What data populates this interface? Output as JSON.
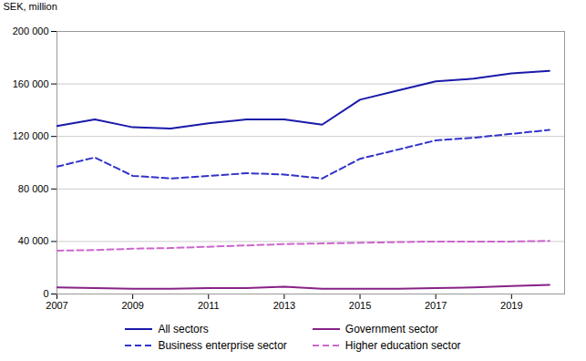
{
  "chart_data": {
    "type": "line",
    "ylabel": "SEK, million",
    "x": [
      2007,
      2008,
      2009,
      2010,
      2011,
      2012,
      2013,
      2014,
      2015,
      2016,
      2017,
      2018,
      2019,
      2020
    ],
    "series": [
      {
        "name": "All sectors",
        "color": "#1a1aaa",
        "line_style": "solid",
        "values": [
          128000,
          133000,
          127000,
          126000,
          130000,
          133000,
          133000,
          129000,
          148000,
          155000,
          162000,
          164000,
          168000,
          170000
        ]
      },
      {
        "name": "Business enterprise sector",
        "color": "#3333cc",
        "line_style": "dashed",
        "values": [
          97000,
          104000,
          90000,
          88000,
          90000,
          92000,
          91000,
          88000,
          103000,
          110000,
          117000,
          119000,
          122000,
          125000
        ]
      },
      {
        "name": "Government sector",
        "color": "#882288",
        "line_style": "solid",
        "values": [
          5000,
          4500,
          4000,
          4000,
          4500,
          4500,
          5500,
          4000,
          4000,
          4000,
          4500,
          5000,
          6000,
          7000
        ]
      },
      {
        "name": "Higher education sector",
        "color": "#cc66cc",
        "line_style": "dashed",
        "values": [
          33000,
          33500,
          34500,
          35000,
          36000,
          37000,
          38000,
          38500,
          39000,
          39500,
          40000,
          40000,
          40000,
          40500
        ]
      }
    ],
    "xlim": [
      2007,
      2020.4
    ],
    "xticks": [
      2007,
      2009,
      2011,
      2013,
      2015,
      2017,
      2019
    ],
    "ylim": [
      0,
      200000
    ],
    "yticks": [
      0,
      {
        "value": 40000,
        "label": "40 000"
      },
      {
        "value": 80000,
        "label": "80 000"
      },
      {
        "value": 120000,
        "label": "120 000"
      },
      {
        "value": 160000,
        "label": "160 000"
      },
      {
        "value": 200000,
        "label": "200 000"
      }
    ],
    "grid": true,
    "legend": "bottom"
  }
}
